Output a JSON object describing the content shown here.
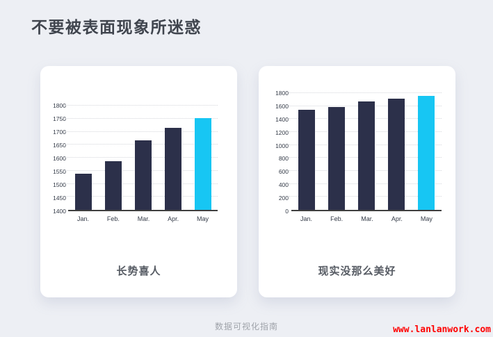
{
  "page": {
    "title": "不要被表面现象所迷惑",
    "footer_center": "数据可视化指南",
    "footer_link": "www.lanlanwork.com"
  },
  "colors": {
    "background": "#edeff4",
    "card": "#ffffff",
    "bar": "#2c304a",
    "bar_highlight": "#17c6f3",
    "axis_line": "#3f3f3f",
    "gridline": "#d4d6db",
    "title_text": "#40454e",
    "caption_text": "#565b63",
    "axis_text": "#333a47",
    "footer_text": "#9fa3aa",
    "link_text": "#ff0000"
  },
  "chart_data": [
    {
      "type": "bar",
      "title": "长势喜人",
      "categories": [
        "Jan.",
        "Feb.",
        "Mar.",
        "Apr.",
        "May"
      ],
      "values": [
        1540,
        1588,
        1668,
        1714,
        1752
      ],
      "xlabel": "",
      "ylabel": "",
      "ylim": [
        1400,
        1800
      ],
      "ytick_step": 50,
      "highlight_index": 4,
      "grid": "horizontal-dotted",
      "legend_position": "none"
    },
    {
      "type": "bar",
      "title": "现实没那么美好",
      "categories": [
        "Jan.",
        "Feb.",
        "Mar.",
        "Apr.",
        "May"
      ],
      "values": [
        1540,
        1588,
        1668,
        1714,
        1752
      ],
      "xlabel": "",
      "ylabel": "",
      "ylim": [
        0,
        1800
      ],
      "ytick_step": 200,
      "highlight_index": 4,
      "grid": "horizontal-dotted",
      "legend_position": "none"
    }
  ]
}
